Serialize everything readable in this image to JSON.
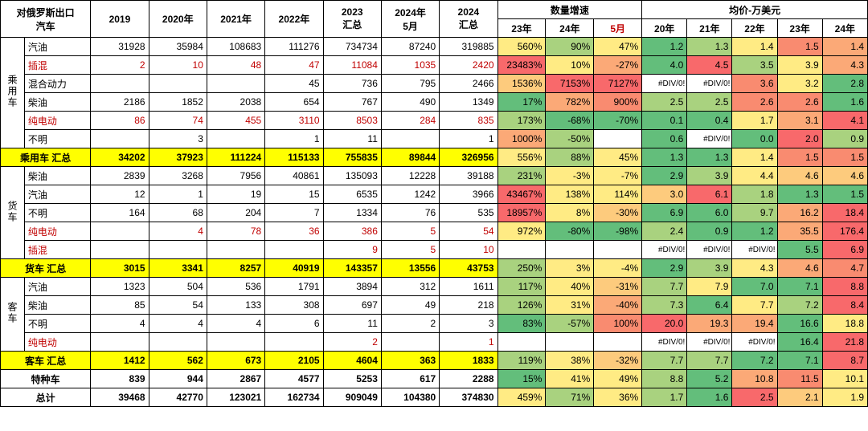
{
  "header": {
    "title": "对俄罗斯出口 汽车",
    "year_cols": [
      "2019",
      "2020年",
      "2021年",
      "2022年",
      "2023 汇总",
      "2024年 5月",
      "2024 汇总"
    ],
    "growth_title": "数量增速",
    "growth_sub": [
      "23年",
      "24年",
      "5月"
    ],
    "growth_sub_red_idx": 2,
    "price_title": "均价-万美元",
    "price_sub": [
      "20年",
      "21年",
      "22年",
      "23年",
      "24年"
    ]
  },
  "cat_labels": {
    "p": "乘用车",
    "t": "货车",
    "b": "客车"
  },
  "subtotal_labels": {
    "p": "乘用车 汇总",
    "t": "货车 汇总",
    "b": "客车 汇总"
  },
  "special_label": "特种车",
  "total_label": "总计",
  "colors": {
    "g3": "#63be7b",
    "g2": "#a9d27f",
    "g1": "#d9e182",
    "y": "#ffeb84",
    "o1": "#fdcb7d",
    "o2": "#fba977",
    "r1": "#f98b70",
    "r2": "#f8696b",
    "none": "#ffffff"
  },
  "div0": "#DIV/0!",
  "rows": [
    {
      "cat": "p",
      "lab": "汽油",
      "y": [
        "31928",
        "35984",
        "108683",
        "111276",
        "734734",
        "87240",
        "319885"
      ],
      "g": [
        [
          "560%",
          "y"
        ],
        [
          "90%",
          "g2"
        ],
        [
          "47%",
          "y"
        ]
      ],
      "pr": [
        [
          "1.2",
          "g3"
        ],
        [
          "1.3",
          "g2"
        ],
        [
          "1.4",
          "y"
        ],
        [
          "1.5",
          "r1"
        ],
        [
          "1.4",
          "o2"
        ]
      ]
    },
    {
      "cat": "p",
      "lab": "插混",
      "red": true,
      "y": [
        "2",
        "10",
        "48",
        "47",
        "11084",
        "1035",
        "2420"
      ],
      "g": [
        [
          "23483%",
          "r2"
        ],
        [
          "10%",
          "y"
        ],
        [
          "-27%",
          "o2"
        ]
      ],
      "pr": [
        [
          "4.0",
          "g3"
        ],
        [
          "4.5",
          "r2"
        ],
        [
          "3.5",
          "g2"
        ],
        [
          "3.9",
          "y"
        ],
        [
          "4.3",
          "o2"
        ]
      ]
    },
    {
      "cat": "p",
      "lab": "混合动力",
      "y": [
        "",
        "",
        "",
        "45",
        "736",
        "795",
        "2466"
      ],
      "g": [
        [
          "1536%",
          "o1"
        ],
        [
          "7153%",
          "r2"
        ],
        [
          "7127%",
          "r2"
        ]
      ],
      "pr": [
        [
          "#DIV/0!",
          "none"
        ],
        [
          "#DIV/0!",
          "none"
        ],
        [
          "3.6",
          "r1"
        ],
        [
          "3.2",
          "y"
        ],
        [
          "2.8",
          "g3"
        ]
      ]
    },
    {
      "cat": "p",
      "lab": "柴油",
      "y": [
        "2186",
        "1852",
        "2038",
        "654",
        "767",
        "490",
        "1349"
      ],
      "g": [
        [
          "17%",
          "g3"
        ],
        [
          "782%",
          "o2"
        ],
        [
          "900%",
          "r1"
        ]
      ],
      "pr": [
        [
          "2.5",
          "g2"
        ],
        [
          "2.5",
          "g2"
        ],
        [
          "2.6",
          "r1"
        ],
        [
          "2.6",
          "r1"
        ],
        [
          "1.6",
          "g3"
        ]
      ]
    },
    {
      "cat": "p",
      "lab": "纯电动",
      "red": true,
      "y": [
        "86",
        "74",
        "455",
        "3110",
        "8503",
        "284",
        "835"
      ],
      "g": [
        [
          "173%",
          "g2"
        ],
        [
          "-68%",
          "g3"
        ],
        [
          "-70%",
          "g3"
        ]
      ],
      "pr": [
        [
          "0.1",
          "g3"
        ],
        [
          "0.4",
          "g3"
        ],
        [
          "1.7",
          "y"
        ],
        [
          "3.1",
          "o2"
        ],
        [
          "4.1",
          "r2"
        ]
      ]
    },
    {
      "cat": "p",
      "lab": "不明",
      "y": [
        "",
        "3",
        "",
        "1",
        "11",
        "",
        "1"
      ],
      "g": [
        [
          "1000%",
          "o2"
        ],
        [
          "-50%",
          "g2"
        ],
        [
          "",
          "none"
        ]
      ],
      "pr": [
        [
          "0.6",
          "g3"
        ],
        [
          "#DIV/0!",
          "none"
        ],
        [
          "0.0",
          "g3"
        ],
        [
          "2.0",
          "r2"
        ],
        [
          "0.9",
          "g2"
        ]
      ]
    },
    {
      "sub": "p",
      "y": [
        "34202",
        "37923",
        "111224",
        "115133",
        "755835",
        "89844",
        "326956"
      ],
      "g": [
        [
          "556%",
          "y"
        ],
        [
          "88%",
          "g2"
        ],
        [
          "45%",
          "y"
        ]
      ],
      "pr": [
        [
          "1.3",
          "g3"
        ],
        [
          "1.3",
          "g3"
        ],
        [
          "1.4",
          "y"
        ],
        [
          "1.5",
          "r1"
        ],
        [
          "1.5",
          "r1"
        ]
      ]
    },
    {
      "cat": "t",
      "lab": "柴油",
      "y": [
        "2839",
        "3268",
        "7956",
        "40861",
        "135093",
        "12228",
        "39188"
      ],
      "g": [
        [
          "231%",
          "g2"
        ],
        [
          "-3%",
          "y"
        ],
        [
          "-7%",
          "y"
        ]
      ],
      "pr": [
        [
          "2.9",
          "g3"
        ],
        [
          "3.9",
          "g2"
        ],
        [
          "4.4",
          "y"
        ],
        [
          "4.6",
          "o1"
        ],
        [
          "4.6",
          "o1"
        ]
      ]
    },
    {
      "cat": "t",
      "lab": "汽油",
      "y": [
        "12",
        "1",
        "19",
        "15",
        "6535",
        "1242",
        "3966"
      ],
      "g": [
        [
          "43467%",
          "r2"
        ],
        [
          "138%",
          "y"
        ],
        [
          "114%",
          "y"
        ]
      ],
      "pr": [
        [
          "3.0",
          "o1"
        ],
        [
          "6.1",
          "r2"
        ],
        [
          "1.8",
          "g2"
        ],
        [
          "1.3",
          "g3"
        ],
        [
          "1.5",
          "g3"
        ]
      ]
    },
    {
      "cat": "t",
      "lab": "不明",
      "y": [
        "164",
        "68",
        "204",
        "7",
        "1334",
        "76",
        "535"
      ],
      "g": [
        [
          "18957%",
          "r2"
        ],
        [
          "8%",
          "y"
        ],
        [
          "-30%",
          "o1"
        ]
      ],
      "pr": [
        [
          "6.9",
          "g3"
        ],
        [
          "6.0",
          "g3"
        ],
        [
          "9.7",
          "g2"
        ],
        [
          "16.2",
          "o2"
        ],
        [
          "18.4",
          "r2"
        ]
      ]
    },
    {
      "cat": "t",
      "lab": "纯电动",
      "red": true,
      "y": [
        "",
        "4",
        "78",
        "36",
        "386",
        "5",
        "54"
      ],
      "g": [
        [
          "972%",
          "y"
        ],
        [
          "-80%",
          "g3"
        ],
        [
          "-98%",
          "g3"
        ]
      ],
      "pr": [
        [
          "2.4",
          "g2"
        ],
        [
          "0.9",
          "g3"
        ],
        [
          "1.2",
          "g3"
        ],
        [
          "35.5",
          "o2"
        ],
        [
          "176.4",
          "r2"
        ]
      ]
    },
    {
      "cat": "t",
      "lab": "插混",
      "red": true,
      "y": [
        "",
        "",
        "",
        "",
        "9",
        "5",
        "10"
      ],
      "g": [
        [
          "",
          "none"
        ],
        [
          "",
          "none"
        ],
        [
          "",
          "none"
        ]
      ],
      "pr": [
        [
          "#DIV/0!",
          "none"
        ],
        [
          "#DIV/0!",
          "none"
        ],
        [
          "#DIV/0!",
          "none"
        ],
        [
          "5.5",
          "g3"
        ],
        [
          "6.9",
          "r2"
        ]
      ]
    },
    {
      "sub": "t",
      "y": [
        "3015",
        "3341",
        "8257",
        "40919",
        "143357",
        "13556",
        "43753"
      ],
      "g": [
        [
          "250%",
          "g2"
        ],
        [
          "3%",
          "y"
        ],
        [
          "-4%",
          "y"
        ]
      ],
      "pr": [
        [
          "2.9",
          "g3"
        ],
        [
          "3.9",
          "g2"
        ],
        [
          "4.3",
          "y"
        ],
        [
          "4.6",
          "o2"
        ],
        [
          "4.7",
          "r1"
        ]
      ]
    },
    {
      "cat": "b",
      "lab": "汽油",
      "y": [
        "1323",
        "504",
        "536",
        "1791",
        "3894",
        "312",
        "1611"
      ],
      "g": [
        [
          "117%",
          "g2"
        ],
        [
          "40%",
          "y"
        ],
        [
          "-31%",
          "o1"
        ]
      ],
      "pr": [
        [
          "7.7",
          "g2"
        ],
        [
          "7.9",
          "y"
        ],
        [
          "7.0",
          "g3"
        ],
        [
          "7.1",
          "g3"
        ],
        [
          "8.8",
          "r2"
        ]
      ]
    },
    {
      "cat": "b",
      "lab": "柴油",
      "y": [
        "85",
        "54",
        "133",
        "308",
        "697",
        "49",
        "218"
      ],
      "g": [
        [
          "126%",
          "g2"
        ],
        [
          "31%",
          "y"
        ],
        [
          "-40%",
          "o2"
        ]
      ],
      "pr": [
        [
          "7.3",
          "g2"
        ],
        [
          "6.4",
          "g3"
        ],
        [
          "7.7",
          "y"
        ],
        [
          "7.2",
          "g2"
        ],
        [
          "8.4",
          "r2"
        ]
      ]
    },
    {
      "cat": "b",
      "lab": "不明",
      "y": [
        "4",
        "4",
        "4",
        "6",
        "11",
        "2",
        "3"
      ],
      "g": [
        [
          "83%",
          "g3"
        ],
        [
          "-57%",
          "g2"
        ],
        [
          "100%",
          "r1"
        ]
      ],
      "pr": [
        [
          "20.0",
          "r2"
        ],
        [
          "19.3",
          "o2"
        ],
        [
          "19.4",
          "o2"
        ],
        [
          "16.6",
          "g3"
        ],
        [
          "18.8",
          "y"
        ]
      ]
    },
    {
      "cat": "b",
      "lab": "纯电动",
      "red": true,
      "y": [
        "",
        "",
        "",
        "",
        "2",
        "",
        "1"
      ],
      "g": [
        [
          "",
          "none"
        ],
        [
          "",
          "none"
        ],
        [
          "",
          "none"
        ]
      ],
      "pr": [
        [
          "#DIV/0!",
          "none"
        ],
        [
          "#DIV/0!",
          "none"
        ],
        [
          "#DIV/0!",
          "none"
        ],
        [
          "16.4",
          "g3"
        ],
        [
          "21.8",
          "r2"
        ]
      ]
    },
    {
      "sub": "b",
      "y": [
        "1412",
        "562",
        "673",
        "2105",
        "4604",
        "363",
        "1833"
      ],
      "g": [
        [
          "119%",
          "g2"
        ],
        [
          "38%",
          "y"
        ],
        [
          "-32%",
          "o1"
        ]
      ],
      "pr": [
        [
          "7.7",
          "g2"
        ],
        [
          "7.7",
          "g2"
        ],
        [
          "7.2",
          "g3"
        ],
        [
          "7.1",
          "g3"
        ],
        [
          "8.7",
          "r2"
        ]
      ]
    },
    {
      "special": true,
      "y": [
        "839",
        "944",
        "2867",
        "4577",
        "5253",
        "617",
        "2288"
      ],
      "g": [
        [
          "15%",
          "g3"
        ],
        [
          "41%",
          "y"
        ],
        [
          "49%",
          "y"
        ]
      ],
      "pr": [
        [
          "8.8",
          "g2"
        ],
        [
          "5.2",
          "g3"
        ],
        [
          "10.8",
          "o2"
        ],
        [
          "11.5",
          "r1"
        ],
        [
          "10.1",
          "y"
        ]
      ]
    },
    {
      "total": true,
      "y": [
        "39468",
        "42770",
        "123021",
        "162734",
        "909049",
        "104380",
        "374830"
      ],
      "g": [
        [
          "459%",
          "y"
        ],
        [
          "71%",
          "g2"
        ],
        [
          "36%",
          "y"
        ]
      ],
      "pr": [
        [
          "1.7",
          "g2"
        ],
        [
          "1.6",
          "g3"
        ],
        [
          "2.5",
          "r2"
        ],
        [
          "2.1",
          "o1"
        ],
        [
          "1.9",
          "y"
        ]
      ]
    }
  ],
  "cat_spans": {
    "p": 6,
    "t": 5,
    "b": 4
  }
}
